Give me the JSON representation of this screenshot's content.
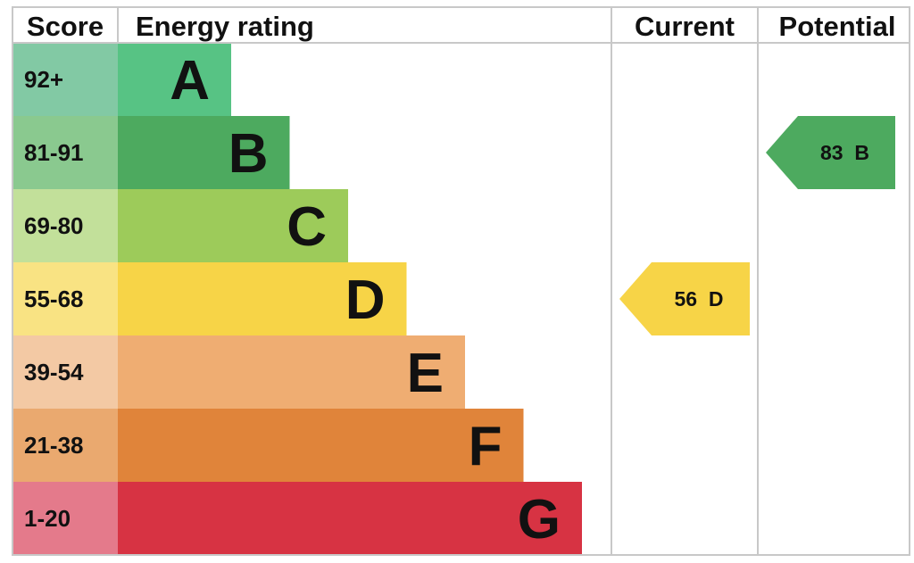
{
  "chart_data": {
    "type": "bar",
    "headers": {
      "score": "Score",
      "energy_rating": "Energy rating",
      "current": "Current",
      "potential": "Potential"
    },
    "bands": [
      {
        "letter": "A",
        "range": "92+",
        "bar_color": "#57c384",
        "score_bg": "#82c9a4"
      },
      {
        "letter": "B",
        "range": "81-91",
        "bar_color": "#4daa5f",
        "score_bg": "#8ac98f"
      },
      {
        "letter": "C",
        "range": "69-80",
        "bar_color": "#9dcb5a",
        "score_bg": "#c2e09a"
      },
      {
        "letter": "D",
        "range": "55-68",
        "bar_color": "#f7d447",
        "score_bg": "#f9e383"
      },
      {
        "letter": "E",
        "range": "39-54",
        "bar_color": "#efad72",
        "score_bg": "#f3c9a4"
      },
      {
        "letter": "F",
        "range": "21-38",
        "bar_color": "#e0843a",
        "score_bg": "#eaa96f"
      },
      {
        "letter": "G",
        "range": "1-20",
        "bar_color": "#d73343",
        "score_bg": "#e47a8b"
      }
    ],
    "current": {
      "score": 56,
      "band": "D",
      "label": "56  D",
      "color": "#f7d447"
    },
    "potential": {
      "score": 83,
      "band": "B",
      "label": "83  B",
      "color": "#4daa5f"
    }
  }
}
